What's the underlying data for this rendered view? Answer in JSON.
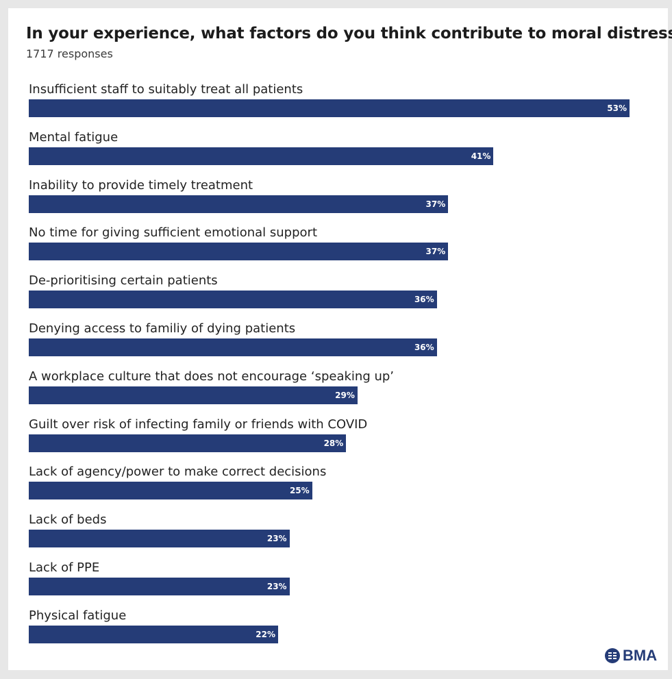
{
  "title": "In your experience, what factors do you think contribute to moral distress?",
  "subtitle": "1717 responses",
  "logo_text": "BMA",
  "logo_icon": "bma-crest-icon",
  "colors": {
    "bar": "#253c77",
    "value_text": "#ffffff",
    "label": "#222222"
  },
  "chart_data": {
    "type": "bar",
    "orientation": "horizontal",
    "title": "In your experience, what factors do you think contribute to moral distress?",
    "subtitle": "1717 responses",
    "xlabel": "",
    "ylabel": "",
    "xlim": [
      0,
      53
    ],
    "grid": false,
    "legend": "none",
    "categories": [
      "Insufficient staff to suitably treat all patients",
      "Mental fatigue",
      "Inability to provide timely treatment",
      "No time for giving sufficient emotional support",
      "De-prioritising certain patients",
      "Denying access to familiy of dying patients",
      "A workplace culture that does not encourage ‘speaking up’",
      "Guilt over risk of infecting family or friends with COVID",
      "Lack of agency/power to make correct decisions",
      "Lack of beds",
      "Lack of PPE",
      "Physical fatigue"
    ],
    "values": [
      53,
      41,
      37,
      37,
      36,
      36,
      29,
      28,
      25,
      23,
      23,
      22
    ],
    "value_labels": [
      "53%",
      "41%",
      "37%",
      "37%",
      "36%",
      "36%",
      "29%",
      "28%",
      "25%",
      "23%",
      "23%",
      "22%"
    ]
  }
}
